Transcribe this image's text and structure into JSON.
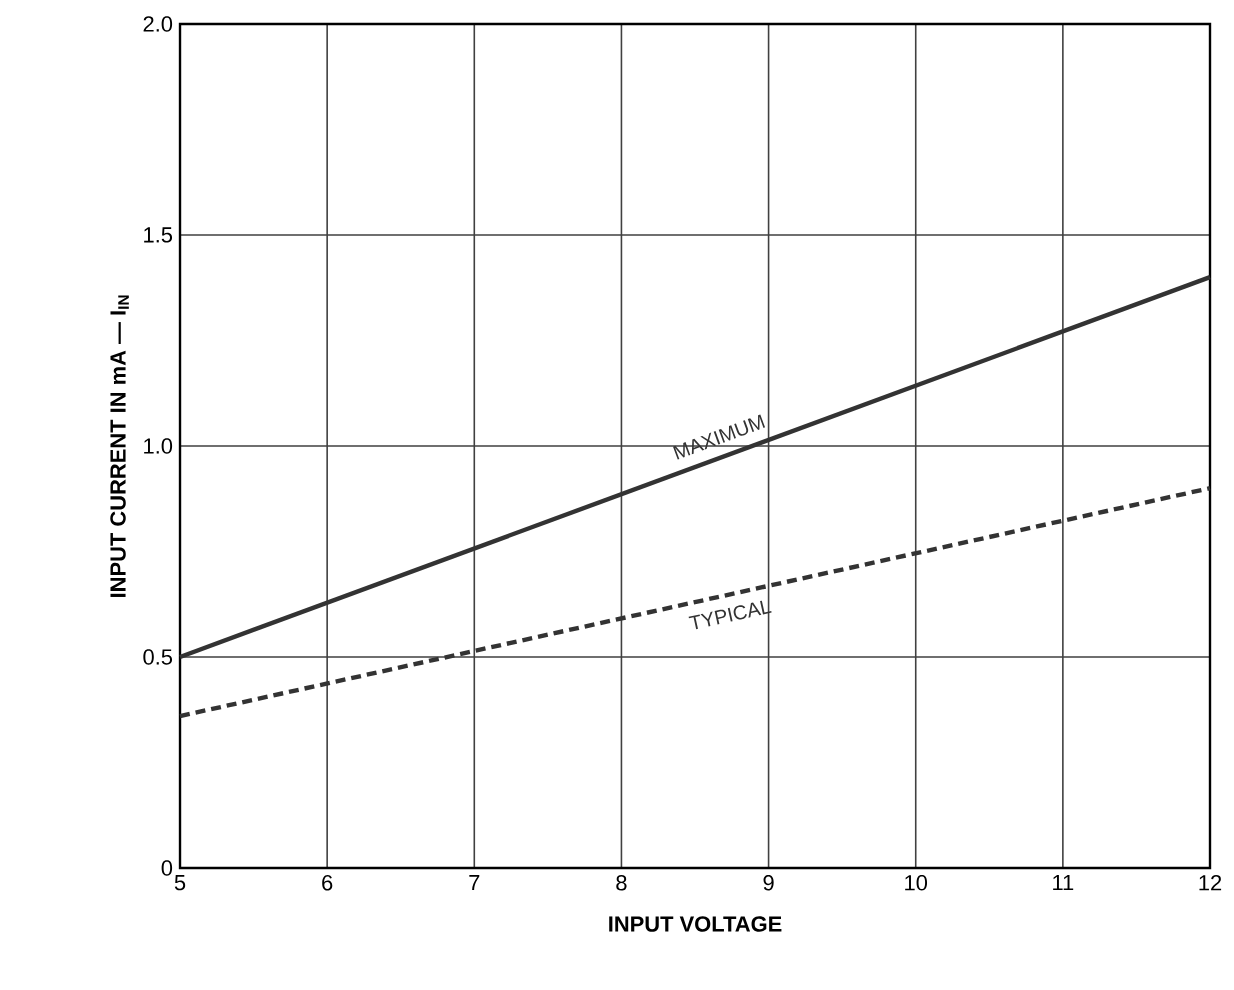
{
  "chart_data": {
    "type": "line",
    "xlabel": "INPUT VOLTAGE",
    "ylabel": "INPUT CURRENT IN mA — I$_{IN}$",
    "x": [
      5,
      12
    ],
    "series": [
      {
        "name": "MAXIMUM",
        "color": "#333333",
        "line_style": "solid",
        "values": [
          0.5,
          1.4
        ]
      },
      {
        "name": "TYPICAL",
        "color": "#333333",
        "line_style": "dashed",
        "values": [
          0.36,
          0.9
        ]
      }
    ],
    "xlim": [
      5,
      12
    ],
    "ylim": [
      0,
      2
    ],
    "xticks": [
      5,
      6,
      7,
      8,
      9,
      10,
      11,
      12
    ],
    "yticks": [
      0,
      0.5,
      {
        "value": 1,
        "label": "1.0"
      },
      1.5,
      {
        "value": 2,
        "label": "2.0"
      }
    ],
    "grid": true,
    "marker": "none"
  }
}
